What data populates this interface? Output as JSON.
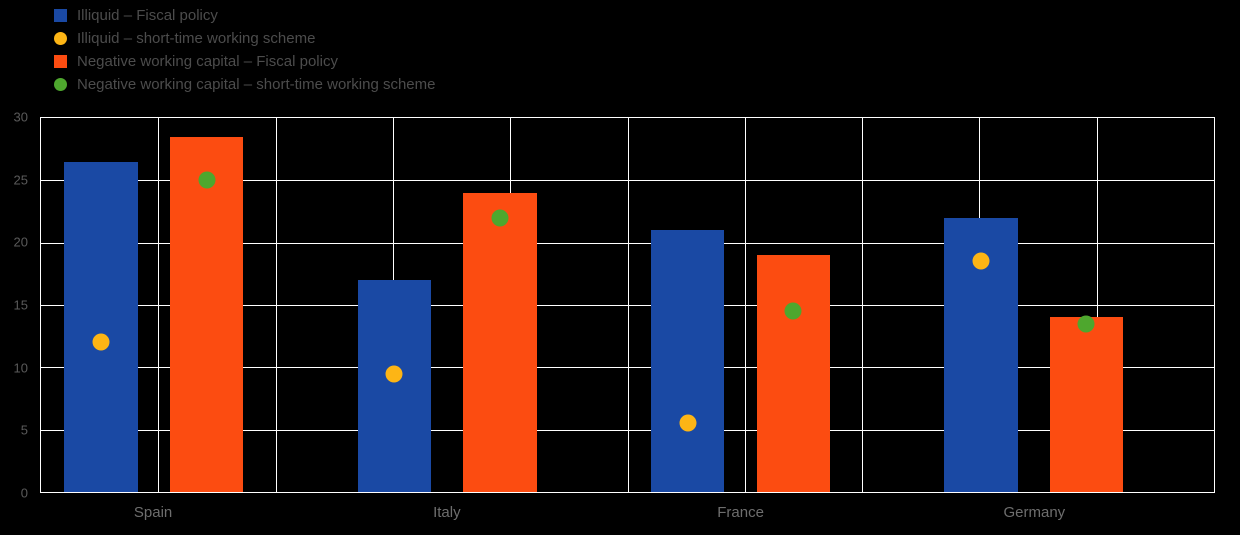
{
  "colors": {
    "background": "#000000",
    "grid": "#ffffff",
    "axis_text": "#5a5a5a",
    "category_text": "#6e6e6e",
    "legend_text": "#4c4c4c",
    "bar_blue": "#1a49a4",
    "bar_orange": "#fc4c11",
    "dot_yellow": "#fdb515",
    "dot_green": "#4ea72e"
  },
  "legend": {
    "items": [
      {
        "label": "Illiquid – Fiscal policy",
        "marker": "square",
        "color": "#1a49a4"
      },
      {
        "label": "Illiquid – short-time working scheme",
        "marker": "circle",
        "color": "#fdb515"
      },
      {
        "label": "Negative working capital – Fiscal policy",
        "marker": "square",
        "color": "#fc4c11"
      },
      {
        "label": "Negative working capital – short-time working scheme",
        "marker": "circle",
        "color": "#4ea72e"
      }
    ]
  },
  "chart_data": {
    "type": "bar",
    "categories": [
      "Spain",
      "Italy",
      "France",
      "Germany"
    ],
    "series": [
      {
        "name": "Illiquid – Fiscal policy",
        "render": "bar",
        "color": "#1a49a4",
        "values": [
          26.5,
          17,
          21,
          22
        ]
      },
      {
        "name": "Illiquid – short-time working scheme",
        "render": "scatter",
        "color": "#fdb515",
        "values": [
          12,
          9.5,
          5.5,
          18.5
        ]
      },
      {
        "name": "Negative working capital – Fiscal policy",
        "render": "bar",
        "color": "#fc4c11",
        "values": [
          28.5,
          24,
          19,
          14
        ]
      },
      {
        "name": "Negative working capital – short-time working scheme",
        "render": "scatter",
        "color": "#4ea72e",
        "values": [
          25,
          22,
          14.5,
          13.5
        ]
      }
    ],
    "title": "",
    "xlabel": "",
    "ylabel": "",
    "ylim": [
      0,
      30
    ],
    "yticks": [
      0,
      5,
      10,
      15,
      20,
      25,
      30
    ],
    "grid": true,
    "legend_position": "top-left"
  }
}
